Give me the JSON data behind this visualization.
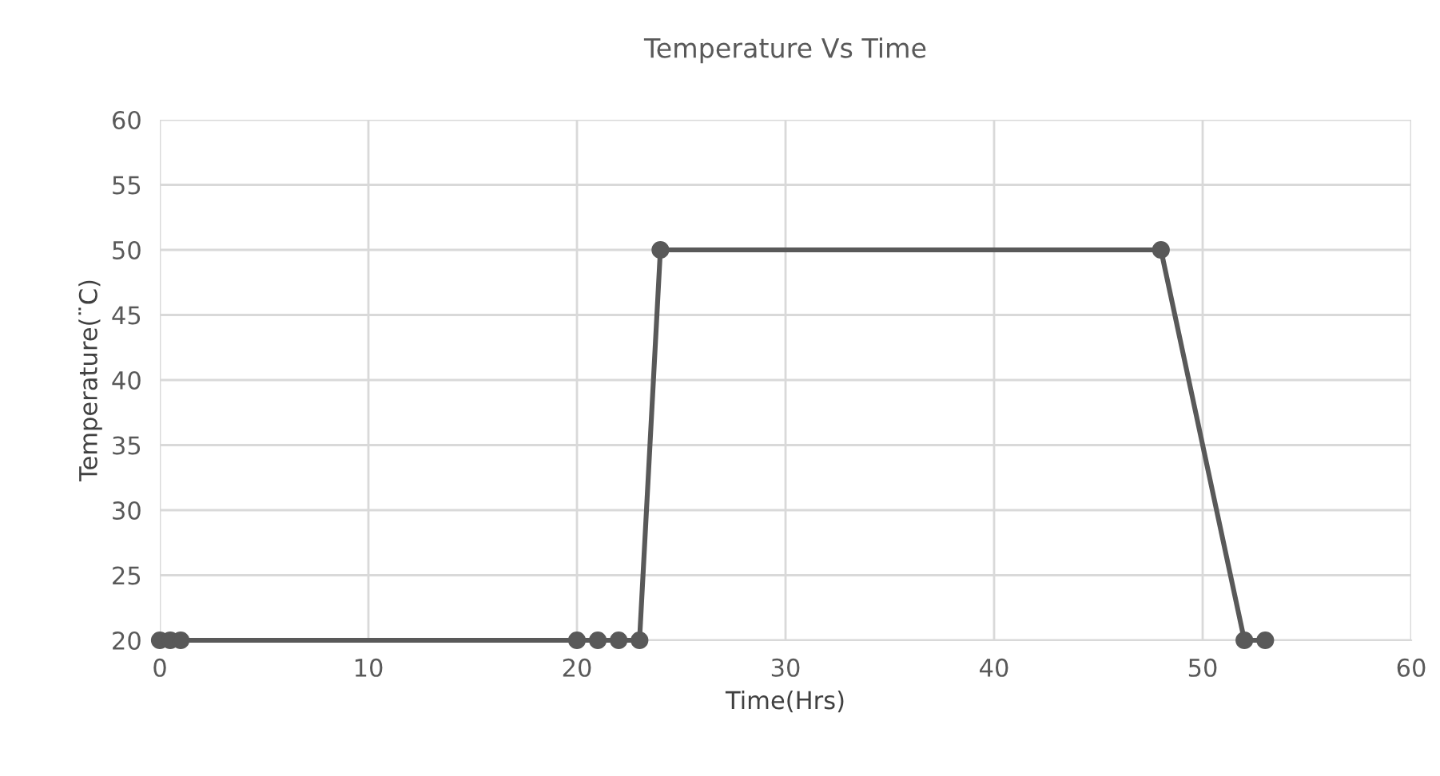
{
  "chart_data": {
    "type": "line",
    "title": "Temperature Vs Time",
    "xlabel": "Time(Hrs)",
    "ylabel": "Temperature(¨C)",
    "x": [
      0,
      0.5,
      1,
      20,
      21,
      22,
      23,
      24,
      48,
      52,
      53
    ],
    "series": [
      {
        "color": "#595959",
        "values": [
          20,
          20,
          20,
          20,
          20,
          20,
          20,
          50,
          50,
          20,
          20
        ]
      }
    ],
    "xlim": [
      0,
      60
    ],
    "ylim": [
      20,
      60
    ],
    "xticks": [
      0,
      10,
      20,
      30,
      40,
      50,
      60
    ],
    "yticks": [
      20,
      25,
      30,
      35,
      40,
      45,
      50,
      55,
      60
    ],
    "grid": true,
    "marker": "circle",
    "line_style": "solid",
    "legend": false
  }
}
